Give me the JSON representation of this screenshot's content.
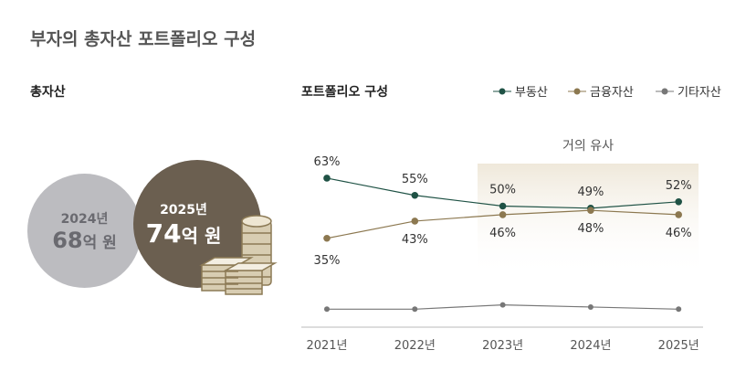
{
  "title": "부자의 총자산 포트폴리오 구성",
  "total": {
    "label": "총자산",
    "prev": {
      "year": "2024년",
      "amount": "68",
      "unit": "억 원"
    },
    "curr": {
      "year": "2025년",
      "amount": "74",
      "unit": "억 원"
    }
  },
  "chart_data": {
    "type": "line",
    "title": "포트폴리오 구성",
    "categories": [
      "2021년",
      "2022년",
      "2023년",
      "2024년",
      "2025년"
    ],
    "series": [
      {
        "name": "부동산",
        "values": [
          63,
          55,
          50,
          49,
          52
        ],
        "labels": [
          "63%",
          "55%",
          "50%",
          "49%",
          "52%"
        ],
        "color": "#1f5245"
      },
      {
        "name": "금융자산",
        "values": [
          35,
          43,
          46,
          48,
          46
        ],
        "labels": [
          "35%",
          "43%",
          "46%",
          "48%",
          "46%"
        ],
        "color": "#8c7850"
      },
      {
        "name": "기타자산",
        "values": [
          2,
          2,
          4,
          3,
          2
        ],
        "color": "#777777"
      }
    ],
    "annotation": "거의 유사",
    "legend": "top-right"
  }
}
